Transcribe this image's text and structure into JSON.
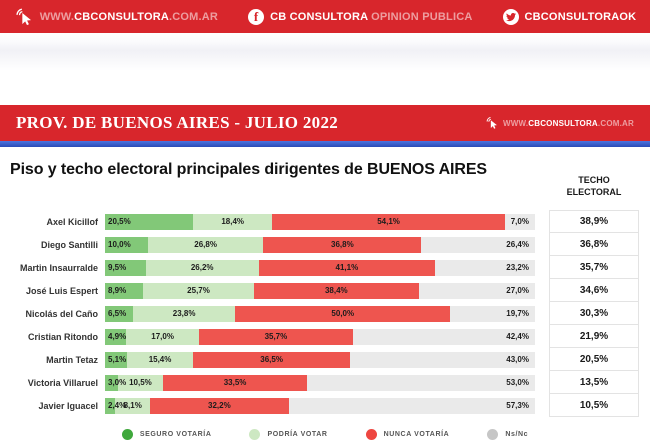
{
  "colors": {
    "banner_red": "#D8262C",
    "blue_stripe_top": "#4C74E0",
    "blue_stripe_bottom": "#2B4AB5",
    "seguro": "#82C878",
    "podria": "#CDE8C2",
    "nunca": "#EE554F",
    "nsnc": "#EAEAEA"
  },
  "top_banner": {
    "website_prefix": "WWW.",
    "website_brand": "CBCONSULTORA",
    "website_suffix": ".COM.AR",
    "facebook_bold": "CB CONSULTORA",
    "facebook_light": "OPINION PUBLICA",
    "twitter_handle": "CBCONSULTORAOK"
  },
  "section_banner": {
    "title": "PROV. DE BUENOS AIRES - JULIO 2022",
    "website_prefix": "WWW.",
    "website_brand": "CBCONSULTORA",
    "website_suffix": ".COM.AR"
  },
  "main": {
    "title": "Piso y techo electoral principales dirigentes de BUENOS AIRES",
    "techo_header_line1": "TECHO",
    "techo_header_line2": "ELECTORAL"
  },
  "legend": [
    {
      "key": "seguro",
      "label": "SEGURO VOTARÍA",
      "color": "#3FA83C"
    },
    {
      "key": "podria",
      "label": "PODRÍA VOTAR",
      "color": "#CDE8C2"
    },
    {
      "key": "nunca",
      "label": "NUNCA VOTARÍA",
      "color": "#EE4640"
    },
    {
      "key": "nsnc",
      "label": "Ns/Nc",
      "color": "#C6C6C6"
    }
  ],
  "chart_data": {
    "type": "bar",
    "subtype": "horizontal-stacked-100pct",
    "unit": "%",
    "title": "Piso y techo electoral principales dirigentes de BUENOS AIRES",
    "categories": [
      "Axel Kicillof",
      "Diego Santilli",
      "Martin Insaurralde",
      "José Luis Espert",
      "Nicolás del Caño",
      "Cristian Ritondo",
      "Martin Tetaz",
      "Victoria Villaruel",
      "Javier Iguacel"
    ],
    "series": [
      {
        "name": "Seguro votaría",
        "color": "#82C878",
        "values": [
          20.5,
          10.0,
          9.5,
          8.9,
          6.5,
          4.9,
          5.1,
          3.0,
          2.4
        ]
      },
      {
        "name": "Podría votar",
        "color": "#CDE8C2",
        "values": [
          18.4,
          26.8,
          26.2,
          25.7,
          23.8,
          17.0,
          15.4,
          10.5,
          8.1
        ]
      },
      {
        "name": "Nunca votaría",
        "color": "#EE554F",
        "values": [
          54.1,
          36.8,
          41.1,
          38.4,
          50.0,
          35.7,
          36.5,
          33.5,
          32.2
        ]
      },
      {
        "name": "Ns/Nc",
        "color": "#EAEAEA",
        "values": [
          7.0,
          26.4,
          23.2,
          27.0,
          19.7,
          42.4,
          43.0,
          53.0,
          57.3
        ]
      }
    ],
    "value_labels": [
      [
        "20,5%",
        "18,4%",
        "54,1%",
        "7,0%"
      ],
      [
        "10,0%",
        "26,8%",
        "36,8%",
        "26,4%"
      ],
      [
        "9,5%",
        "26,2%",
        "41,1%",
        "23,2%"
      ],
      [
        "8,9%",
        "25,7%",
        "38,4%",
        "27,0%"
      ],
      [
        "6,5%",
        "23,8%",
        "50,0%",
        "19,7%"
      ],
      [
        "4,9%",
        "17,0%",
        "35,7%",
        "42,4%"
      ],
      [
        "5,1%",
        "15,4%",
        "36,5%",
        "43,0%"
      ],
      [
        "3,0%",
        "10,5%",
        "33,5%",
        "53,0%"
      ],
      [
        "2,4%",
        "8,1%",
        "32,2%",
        "57,3%"
      ]
    ],
    "techo_electoral_header": "TECHO ELECTORAL",
    "techo_electoral": [
      "38,9%",
      "36,8%",
      "35,7%",
      "34,6%",
      "30,3%",
      "21,9%",
      "20,5%",
      "13,5%",
      "10,5%"
    ],
    "legend_position": "bottom",
    "grid": false,
    "xlim": [
      0,
      100
    ]
  }
}
